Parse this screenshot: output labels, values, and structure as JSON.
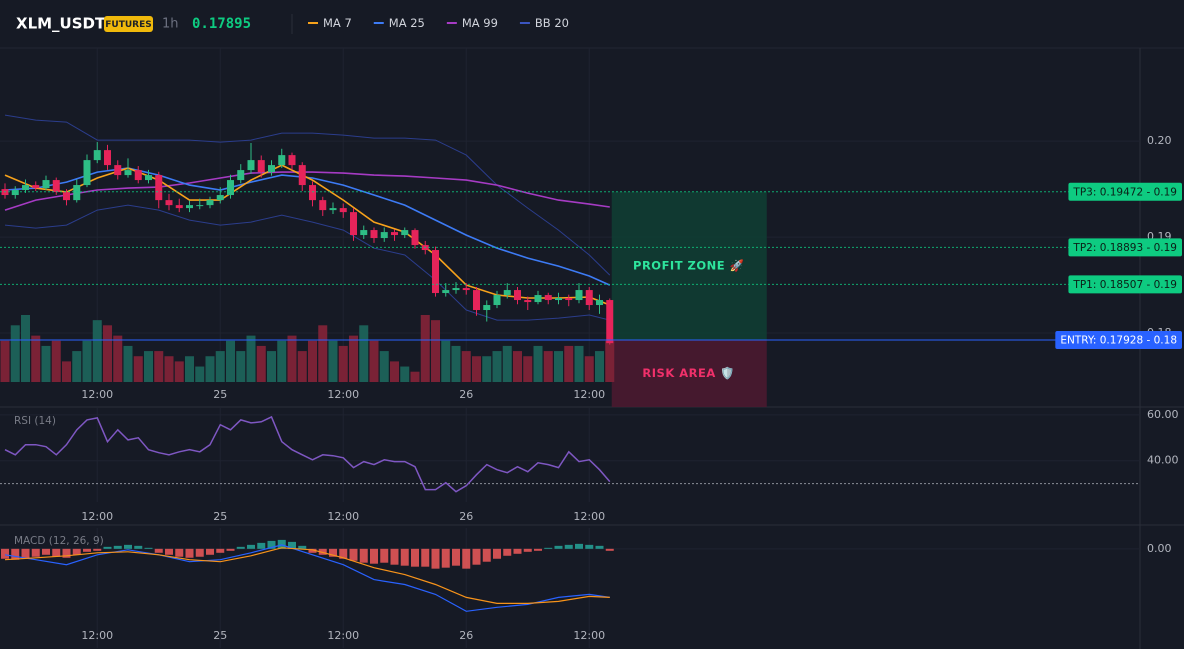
{
  "header": {
    "symbol": "XLM_USDT",
    "badge": "FUTURES",
    "interval": "1h",
    "price": "0.17895"
  },
  "chart_data": [
    {
      "type": "candlestick",
      "categories": [
        null,
        null,
        null,
        null,
        null,
        null,
        null,
        null,
        null,
        "12:00",
        null,
        null,
        null,
        null,
        null,
        null,
        null,
        null,
        null,
        null,
        null,
        "25",
        null,
        null,
        null,
        null,
        null,
        null,
        null,
        null,
        null,
        null,
        null,
        "12:00",
        null,
        null,
        null,
        null,
        null,
        null,
        null,
        null,
        null,
        null,
        null,
        "26",
        null,
        null,
        null,
        null,
        null,
        null,
        null,
        null,
        null,
        null,
        null,
        "12:00",
        null,
        null
      ],
      "open": [
        0.195,
        0.19438,
        0.1949,
        0.19542,
        0.1951,
        0.19594,
        0.19469,
        0.19385,
        0.19542,
        0.19802,
        0.19906,
        0.1975,
        0.19646,
        0.19698,
        0.19594,
        0.19646,
        0.19385,
        0.19333,
        0.19302,
        0.19333,
        0.19333,
        0.19385,
        0.19438,
        0.19594,
        0.19698,
        0.19802,
        0.19677,
        0.1975,
        0.19854,
        0.1975,
        0.19542,
        0.19385,
        0.19281,
        0.19302,
        0.1926,
        0.19021,
        0.19073,
        0.1899,
        0.19052,
        0.19021,
        0.19073,
        0.18917,
        0.18865,
        0.18417,
        0.18448,
        0.18469,
        0.18448,
        0.1824,
        0.18292,
        0.18396,
        0.18448,
        0.18344,
        0.18323,
        0.18396,
        0.18344,
        0.18365,
        0.18344,
        0.18448,
        0.18292,
        0.18344
      ],
      "high": [
        0.1956,
        0.1953,
        0.196,
        0.1958,
        0.1964,
        0.1962,
        0.195,
        0.196,
        0.1986,
        0.1999,
        0.1996,
        0.198,
        0.1982,
        0.1974,
        0.197,
        0.1968,
        0.1945,
        0.194,
        0.1938,
        0.194,
        0.1942,
        0.1952,
        0.1965,
        0.1976,
        0.1998,
        0.1985,
        0.198,
        0.1992,
        0.1988,
        0.1978,
        0.1958,
        0.1942,
        0.1936,
        0.1935,
        0.193,
        0.1912,
        0.191,
        0.191,
        0.1908,
        0.191,
        0.1909,
        0.1896,
        0.189,
        0.1852,
        0.1853,
        0.1852,
        0.1848,
        0.1834,
        0.1844,
        0.1852,
        0.1848,
        0.1838,
        0.1844,
        0.1842,
        0.1842,
        0.184,
        0.1852,
        0.1848,
        0.184,
        0.1836
      ],
      "low": [
        0.194,
        0.194,
        0.1946,
        0.1948,
        0.1949,
        0.1944,
        0.1933,
        0.1936,
        0.1952,
        0.1977,
        0.197,
        0.196,
        0.1962,
        0.1956,
        0.1956,
        0.193,
        0.1928,
        0.1926,
        0.1926,
        0.1929,
        0.193,
        0.1935,
        0.194,
        0.1956,
        0.1966,
        0.1962,
        0.1964,
        0.1972,
        0.197,
        0.1948,
        0.1932,
        0.1922,
        0.1924,
        0.192,
        0.1896,
        0.1898,
        0.1894,
        0.1895,
        0.1896,
        0.1899,
        0.1888,
        0.1882,
        0.1838,
        0.1838,
        0.1841,
        0.184,
        0.1818,
        0.1812,
        0.1826,
        0.1836,
        0.183,
        0.1824,
        0.183,
        0.183,
        0.183,
        0.1828,
        0.1831,
        0.1824,
        0.182,
        0.1788
      ],
      "close": [
        0.19438,
        0.1949,
        0.19542,
        0.1951,
        0.19594,
        0.19469,
        0.19385,
        0.19542,
        0.19802,
        0.19906,
        0.1975,
        0.19646,
        0.19698,
        0.19594,
        0.19646,
        0.19385,
        0.19333,
        0.19302,
        0.19333,
        0.19333,
        0.19385,
        0.19438,
        0.19594,
        0.19698,
        0.19802,
        0.19677,
        0.1975,
        0.19854,
        0.1975,
        0.19542,
        0.19385,
        0.19281,
        0.19302,
        0.1926,
        0.19021,
        0.19073,
        0.1899,
        0.19052,
        0.19021,
        0.19073,
        0.18917,
        0.18865,
        0.18417,
        0.18448,
        0.18469,
        0.18448,
        0.1824,
        0.18292,
        0.18396,
        0.18448,
        0.18344,
        0.18323,
        0.18396,
        0.18344,
        0.18365,
        0.18344,
        0.18448,
        0.18292,
        0.18344,
        0.17895
      ],
      "volume": [
        40,
        55,
        65,
        45,
        35,
        40,
        20,
        30,
        40,
        60,
        55,
        45,
        35,
        25,
        30,
        30,
        25,
        20,
        25,
        15,
        25,
        30,
        40,
        30,
        45,
        35,
        30,
        40,
        45,
        30,
        40,
        55,
        40,
        35,
        45,
        55,
        40,
        30,
        20,
        15,
        10,
        65,
        60,
        40,
        35,
        30,
        25,
        25,
        30,
        35,
        30,
        25,
        35,
        30,
        30,
        35,
        35,
        25,
        30,
        40
      ],
      "up_color": "#2ebd85",
      "down_color": "#e6245a",
      "volume_colors": [
        "#1c5f57",
        "#7a2236"
      ],
      "ylim": [
        0.1749,
        0.2097
      ],
      "yticks": [
        {
          "value": 0.2,
          "label": "0.20"
        },
        0.19,
        0.18
      ],
      "x": [
        0,
        3,
        6,
        9,
        12,
        15,
        18,
        21,
        24,
        27,
        30,
        33,
        36,
        39,
        42,
        45,
        48,
        51,
        54,
        57,
        59
      ],
      "series": [
        {
          "name": "MA 7",
          "color": "#f7a21b",
          "values": [
            0.19646,
            0.1951,
            0.19469,
            0.19615,
            0.19719,
            0.19594,
            0.19385,
            0.19385,
            0.19594,
            0.1975,
            0.19594,
            0.19385,
            0.19156,
            0.19052,
            0.18813,
            0.185,
            0.18396,
            0.18365,
            0.18365,
            0.18375,
            0.18292
          ]
        },
        {
          "name": "MA 25",
          "color": "#3d7bf5",
          "values": [
            0.1949,
            0.1951,
            0.19573,
            0.19677,
            0.19719,
            0.19646,
            0.19542,
            0.1949,
            0.19573,
            0.19646,
            0.19615,
            0.19542,
            0.19438,
            0.19333,
            0.19177,
            0.19021,
            0.18885,
            0.18781,
            0.18698,
            0.18594,
            0.185
          ]
        },
        {
          "name": "MA 99",
          "color": "#a63bc4",
          "values": [
            0.19281,
            0.19385,
            0.19438,
            0.1949,
            0.1951,
            0.19521,
            0.19563,
            0.19615,
            0.19667,
            0.19677,
            0.19677,
            0.19667,
            0.19646,
            0.19635,
            0.19615,
            0.19594,
            0.19542,
            0.19458,
            0.19385,
            0.19344,
            0.19313
          ]
        },
        {
          "name": "BB 20",
          "color": "#2b3d8c",
          "values": [
            0.20271,
            0.20219,
            0.20198,
            0.2001,
            0.2001,
            0.2001,
            0.2001,
            0.1999,
            0.2001,
            0.20083,
            0.20083,
            0.20063,
            0.20031,
            0.20031,
            0.2001,
            0.19854,
            0.19542,
            0.19302,
            0.19073,
            0.18813,
            0.18604
          ],
          "lower": [
            0.19125,
            0.19094,
            0.19125,
            0.19281,
            0.19333,
            0.19281,
            0.19177,
            0.19125,
            0.19156,
            0.19229,
            0.19156,
            0.19073,
            0.18885,
            0.18813,
            0.18552,
            0.1824,
            0.18135,
            0.18135,
            0.18156,
            0.18188,
            0.18135
          ]
        }
      ],
      "levels": [
        {
          "label": "TP3: 0.19472 - 0.19",
          "value": 0.19472,
          "color": "#0ecb81",
          "style": "dotted"
        },
        {
          "label": "TP2: 0.18893 - 0.19",
          "value": 0.18893,
          "color": "#0ecb81",
          "style": "dotted"
        },
        {
          "label": "TP1: 0.18507 - 0.19",
          "value": 0.18507,
          "color": "#0ecb81",
          "style": "dotted"
        },
        {
          "label": "ENTRY: 0.17928 - 0.18",
          "value": 0.17928,
          "color": "#2962ff",
          "style": "solid"
        }
      ],
      "zones": [
        {
          "label": "PROFIT ZONE 🚀",
          "from": 0.19472,
          "to": 0.17928,
          "color": "#0f3d33",
          "text_color": "#2ee59d"
        },
        {
          "label": "RISK AREA 🛡️",
          "from": 0.17928,
          "to": 0.17229,
          "color": "#4a1a30",
          "text_color": "#f0306a"
        }
      ]
    },
    {
      "type": "line",
      "title": "RSI (14)",
      "categories": [
        null,
        null,
        null,
        null,
        null,
        null,
        null,
        null,
        null,
        "12:00",
        null,
        null,
        null,
        null,
        null,
        null,
        null,
        null,
        null,
        null,
        null,
        "25",
        null,
        null,
        null,
        null,
        null,
        null,
        null,
        null,
        null,
        null,
        null,
        "12:00",
        null,
        null,
        null,
        null,
        null,
        null,
        null,
        null,
        null,
        null,
        null,
        "26",
        null,
        null,
        null,
        null,
        null,
        null,
        null,
        null,
        null,
        null,
        null,
        "12:00",
        null,
        null
      ],
      "series": [
        {
          "color": "#7e57c2",
          "values": [
            44.8,
            42.6,
            47.0,
            47.0,
            46.1,
            42.6,
            47.0,
            53.5,
            57.8,
            58.7,
            48.3,
            53.5,
            49.1,
            50.0,
            44.8,
            43.5,
            42.6,
            43.9,
            44.8,
            43.9,
            47.0,
            55.7,
            53.5,
            57.8,
            56.5,
            57.0,
            59.1,
            48.3,
            44.8,
            42.6,
            40.4,
            42.6,
            42.2,
            41.3,
            37.0,
            39.6,
            38.3,
            40.4,
            39.6,
            39.6,
            37.4,
            27.4,
            27.4,
            30.4,
            26.5,
            29.1,
            33.9,
            38.3,
            36.1,
            34.8,
            37.4,
            35.2,
            39.1,
            38.3,
            37.0,
            43.9,
            39.6,
            40.4,
            36.1,
            30.9
          ]
        }
      ],
      "hlines": [
        30
      ],
      "ylim": [
        22,
        63
      ],
      "yticks": [
        {
          "value": 60,
          "label": "60.00"
        },
        {
          "value": 40,
          "label": "40.00"
        }
      ]
    },
    {
      "type": "macd",
      "title": "MACD (12, 26, 9)",
      "categories": [
        null,
        null,
        null,
        null,
        null,
        null,
        null,
        null,
        null,
        "12:00",
        null,
        null,
        null,
        null,
        null,
        null,
        null,
        null,
        null,
        null,
        null,
        "25",
        null,
        null,
        null,
        null,
        null,
        null,
        null,
        null,
        null,
        null,
        null,
        "12:00",
        null,
        null,
        null,
        null,
        null,
        null,
        null,
        null,
        null,
        null,
        null,
        "26",
        null,
        null,
        null,
        null,
        null,
        null,
        null,
        null,
        null,
        null,
        null,
        "12:00",
        null,
        null
      ],
      "x": [
        0,
        3,
        6,
        9,
        12,
        15,
        18,
        21,
        24,
        27,
        30,
        33,
        36,
        39,
        42,
        45,
        48,
        51,
        54,
        57,
        59
      ],
      "series": [
        {
          "color": "#2962ff",
          "values": [
            -0.00024,
            -0.00044,
            -0.00064,
            -0.00024,
            -4e-05,
            -0.00024,
            -0.00052,
            -0.00044,
            -0.00016,
            0.00016,
            -0.00024,
            -0.00064,
            -0.00124,
            -0.00144,
            -0.00184,
            -0.00252,
            -0.00236,
            -0.00224,
            -0.00196,
            -0.00184,
            -0.00196
          ]
        },
        {
          "color": "#f7931a",
          "values": [
            -0.00044,
            -0.00036,
            -0.00028,
            -0.00016,
            -0.00012,
            -0.00024,
            -0.00044,
            -0.00052,
            -0.00028,
            4e-05,
            -4e-05,
            -0.00036,
            -0.00076,
            -0.00104,
            -0.00144,
            -0.00196,
            -0.0022,
            -0.0022,
            -0.00212,
            -0.00192,
            -0.00196
          ]
        }
      ],
      "histogram": {
        "colors": [
          "#26a69a",
          "#f05a5a"
        ],
        "values": [
          -0.0004,
          -0.00044,
          -0.0004,
          -0.00032,
          -0.00024,
          -0.00032,
          -0.00036,
          -0.00024,
          -0.00012,
          -8e-05,
          8e-05,
          0.00012,
          0.00016,
          0.00012,
          4e-05,
          -0.00016,
          -0.00024,
          -0.00032,
          -0.00036,
          -0.00032,
          -0.00024,
          -0.00016,
          -8e-05,
          8e-05,
          0.00016,
          0.00024,
          0.00032,
          0.00036,
          0.00028,
          0.00012,
          -0.00016,
          -0.00024,
          -0.00032,
          -0.0004,
          -0.00048,
          -0.00056,
          -0.0006,
          -0.00056,
          -0.00064,
          -0.00068,
          -0.00072,
          -0.00072,
          -0.0008,
          -0.00076,
          -0.00068,
          -0.0008,
          -0.00064,
          -0.00052,
          -0.0004,
          -0.00028,
          -0.0002,
          -0.00012,
          -8e-05,
          4e-05,
          0.00012,
          0.00016,
          0.0002,
          0.00016,
          0.00012,
          -8e-05
        ]
      },
      "ylim": [
        -0.004,
        0.00084
      ],
      "yticks": [
        {
          "value": 0,
          "label": "0.00"
        }
      ]
    }
  ]
}
